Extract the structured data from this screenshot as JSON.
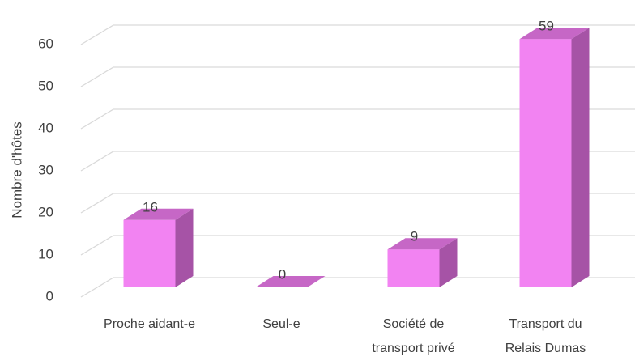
{
  "chart_data": {
    "type": "bar3d",
    "y_label": "Nombre d'hôtes",
    "categories": [
      "Proche aidant-e",
      "Seul-e",
      "Société de transport privé",
      "Transport du Relais Dumas"
    ],
    "values": [
      16,
      0,
      9,
      59
    ],
    "color": "#f283f2",
    "ylim": [
      0,
      60
    ],
    "yticks": [
      0,
      10,
      20,
      30,
      40,
      50,
      60
    ],
    "grid": true
  }
}
